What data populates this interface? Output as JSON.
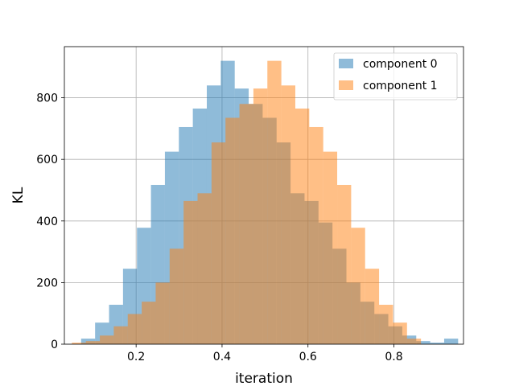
{
  "chart_data": {
    "type": "bar",
    "xlabel": "iteration",
    "ylabel": "KL",
    "xlim": [
      0.033,
      0.962
    ],
    "ylim": [
      0,
      966
    ],
    "x_ticks": [
      0.2,
      0.4,
      0.6,
      0.8
    ],
    "x_tick_labels": [
      "0.2",
      "0.4",
      "0.6",
      "0.8"
    ],
    "y_ticks": [
      0,
      200,
      400,
      600,
      800
    ],
    "y_tick_labels": [
      "0",
      "200",
      "400",
      "600",
      "800"
    ],
    "grid": true,
    "legend_position": "top-right",
    "series": [
      {
        "name": "component 0",
        "color": "#1f77b4",
        "opacity": 0.5,
        "bin_edges": [
          0.072,
          0.1045,
          0.137,
          0.1695,
          0.202,
          0.2345,
          0.267,
          0.2995,
          0.332,
          0.3645,
          0.397,
          0.4295,
          0.462,
          0.4945,
          0.527,
          0.5595,
          0.592,
          0.6245,
          0.657,
          0.6895,
          0.722,
          0.7545,
          0.787,
          0.8195,
          0.852,
          0.8845,
          0.917,
          0.9495
        ],
        "counts": [
          18,
          70,
          128,
          245,
          378,
          517,
          625,
          705,
          765,
          840,
          920,
          830,
          780,
          735,
          655,
          490,
          465,
          395,
          310,
          200,
          138,
          98,
          58,
          28,
          10,
          5,
          18
        ]
      },
      {
        "name": "component 1",
        "color": "#ff7f0e",
        "opacity": 0.5,
        "bin_edges": [
          0.0505,
          0.083,
          0.1155,
          0.148,
          0.1805,
          0.213,
          0.2455,
          0.278,
          0.3105,
          0.343,
          0.3755,
          0.408,
          0.4405,
          0.473,
          0.5055,
          0.538,
          0.5705,
          0.603,
          0.6355,
          0.668,
          0.7005,
          0.733,
          0.7655,
          0.798,
          0.8305,
          0.863,
          0.8955,
          0.928
        ],
        "counts": [
          5,
          10,
          28,
          58,
          98,
          138,
          200,
          310,
          465,
          490,
          655,
          735,
          780,
          830,
          920,
          840,
          765,
          705,
          625,
          517,
          378,
          245,
          128,
          70,
          18,
          0,
          0
        ]
      }
    ]
  }
}
